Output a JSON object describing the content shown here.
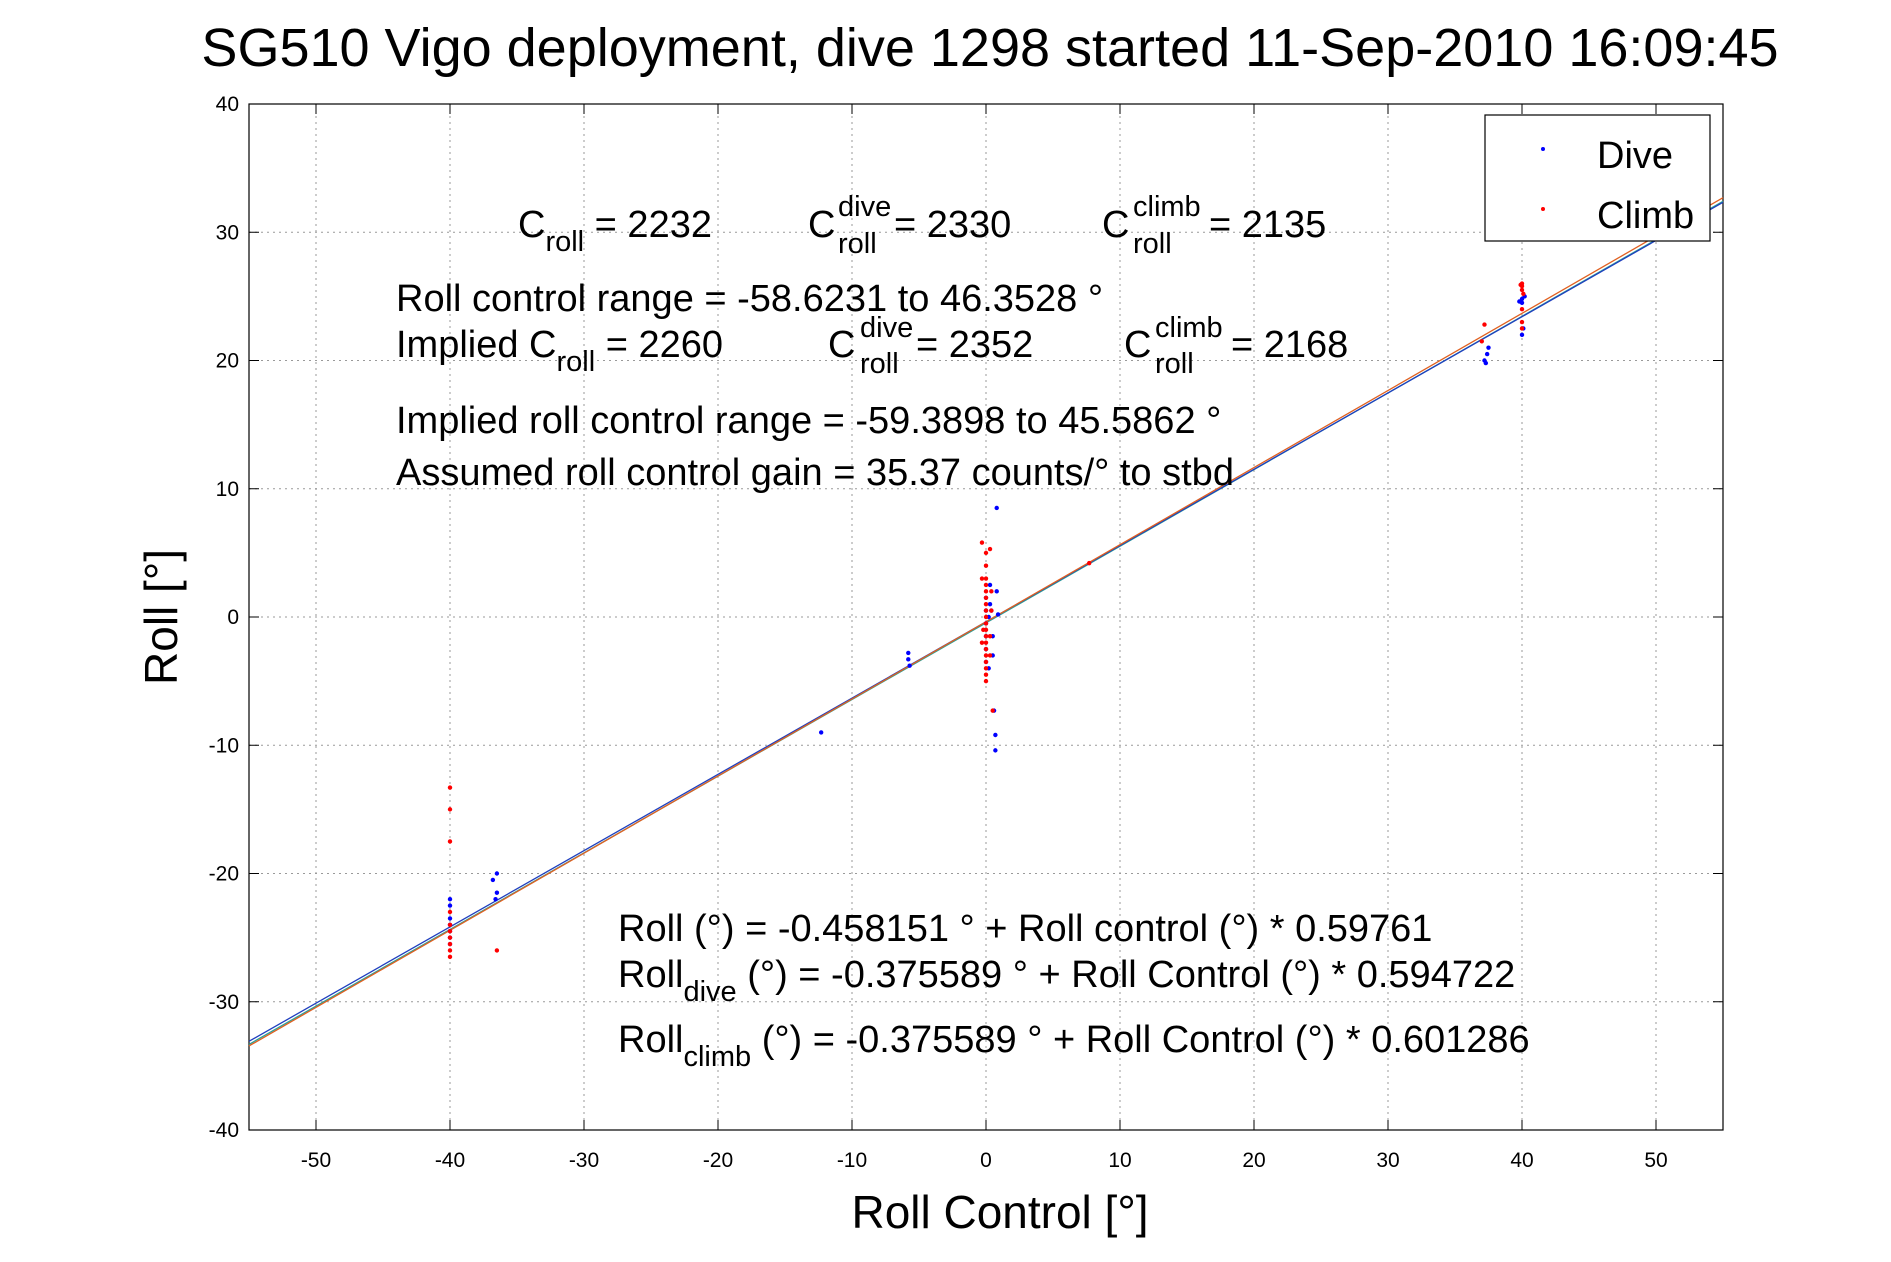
{
  "chart_data": {
    "type": "scatter",
    "title": "SG510 Vigo deployment, dive 1298 started 11-Sep-2010 16:09:45",
    "xlabel": "Roll Control [°]",
    "ylabel": "Roll [°]",
    "xlim": [
      -55,
      55
    ],
    "ylim": [
      -40,
      40
    ],
    "xticks": [
      -50,
      -40,
      -30,
      -20,
      -10,
      0,
      10,
      20,
      30,
      40,
      50
    ],
    "yticks": [
      -40,
      -30,
      -20,
      -10,
      0,
      10,
      20,
      30,
      40
    ],
    "grid": true,
    "legend": {
      "position": "top-right",
      "entries": [
        "Dive",
        "Climb"
      ]
    },
    "colors": {
      "dive": "#0000ff",
      "climb": "#ff0000"
    },
    "series": [
      {
        "name": "Dive",
        "color": "#0000ff",
        "points": [
          [
            -40,
            -22
          ],
          [
            -40,
            -22.5
          ],
          [
            -40,
            -23.5
          ],
          [
            -40,
            -24
          ],
          [
            -40,
            -24.5
          ],
          [
            -40,
            -25
          ],
          [
            -40,
            -25.5
          ],
          [
            -36.5,
            -20
          ],
          [
            -36.8,
            -20.5
          ],
          [
            -36.5,
            -21.5
          ],
          [
            -36.6,
            -22
          ],
          [
            -12.3,
            -9
          ],
          [
            -5.8,
            -2.8
          ],
          [
            -5.8,
            -3.3
          ],
          [
            -5.7,
            -3.8
          ],
          [
            0,
            -3.5
          ],
          [
            0,
            -2.5
          ],
          [
            0,
            -1.5
          ],
          [
            0,
            -0.5
          ],
          [
            0,
            0.5
          ],
          [
            0,
            1.5
          ],
          [
            0.2,
            -4
          ],
          [
            0.2,
            0
          ],
          [
            0.3,
            1
          ],
          [
            0.3,
            2.5
          ],
          [
            0.5,
            -3
          ],
          [
            0.5,
            -1.5
          ],
          [
            0.4,
            0.5
          ],
          [
            0.8,
            8.5
          ],
          [
            0.7,
            -9.2
          ],
          [
            0.7,
            -10.4
          ],
          [
            0.6,
            -7.3
          ],
          [
            0.8,
            2
          ],
          [
            0.9,
            0.2
          ],
          [
            37.2,
            20
          ],
          [
            37.4,
            20.5
          ],
          [
            37.5,
            21
          ],
          [
            37.3,
            19.8
          ],
          [
            40,
            22
          ],
          [
            40,
            24.5
          ],
          [
            40,
            24.8
          ],
          [
            40.2,
            25
          ],
          [
            39.8,
            24.6
          ],
          [
            40.1,
            22.5
          ]
        ]
      },
      {
        "name": "Climb",
        "color": "#ff0000",
        "points": [
          [
            -40,
            -13.3
          ],
          [
            -40,
            -15
          ],
          [
            -40,
            -17.5
          ],
          [
            -40,
            -24.5
          ],
          [
            -40,
            -25
          ],
          [
            -40,
            -25.5
          ],
          [
            -40,
            -26
          ],
          [
            -40,
            -26.5
          ],
          [
            -40,
            -24
          ],
          [
            -40,
            -23
          ],
          [
            -36.5,
            -26
          ],
          [
            -0.3,
            5.8
          ],
          [
            0,
            5
          ],
          [
            0,
            4
          ],
          [
            0,
            3
          ],
          [
            0,
            2.5
          ],
          [
            0,
            2
          ],
          [
            0,
            1.5
          ],
          [
            0,
            1
          ],
          [
            0,
            0.5
          ],
          [
            0,
            0
          ],
          [
            0,
            -0.5
          ],
          [
            0,
            -1
          ],
          [
            0,
            -1.5
          ],
          [
            0,
            -2
          ],
          [
            0,
            -2.5
          ],
          [
            0,
            -3
          ],
          [
            0,
            -3.5
          ],
          [
            0,
            -4
          ],
          [
            0,
            -4.5
          ],
          [
            0,
            -5
          ],
          [
            -0.3,
            3
          ],
          [
            -0.3,
            -2
          ],
          [
            -0.2,
            -1
          ],
          [
            0.3,
            5.3
          ],
          [
            0.4,
            2
          ],
          [
            0.3,
            -1.5
          ],
          [
            0.4,
            0.5
          ],
          [
            0.3,
            -3
          ],
          [
            0.5,
            -7.3
          ],
          [
            7.7,
            4.2
          ],
          [
            37,
            21.5
          ],
          [
            37.2,
            22.8
          ],
          [
            40,
            26
          ],
          [
            40,
            25.8
          ],
          [
            40,
            25.5
          ],
          [
            40.1,
            25.2
          ],
          [
            40,
            24
          ],
          [
            40,
            23
          ],
          [
            40,
            22.5
          ],
          [
            39.9,
            25.9
          ]
        ]
      }
    ],
    "fit_lines": [
      {
        "name": "fit-all",
        "intercept": -0.458151,
        "slope": 0.59761,
        "color": "#2aa198"
      },
      {
        "name": "fit-dive",
        "intercept": -0.375589,
        "slope": 0.594722,
        "color": "#1f3fbf"
      },
      {
        "name": "fit-climb",
        "intercept": -0.375589,
        "slope": 0.601286,
        "color": "#e06020"
      }
    ]
  },
  "annotations": {
    "c_roll_label": "C",
    "c_roll_sub": "roll",
    "c_roll_val": " = 2232",
    "c_dive_label": "C",
    "c_dive_sup": "dive",
    "c_dive_sub": "roll",
    "c_dive_val": " = 2330",
    "c_climb_label": "C",
    "c_climb_sup": "climb",
    "c_climb_sub": "roll",
    "c_climb_val": " = 2135",
    "range_line": "Roll control range = -58.6231 to 46.3528 °",
    "implied_prefix": "Implied C",
    "implied_c_sub": "roll",
    "implied_c_val": " = 2260",
    "implied_dive_label": "C",
    "implied_dive_sup": "dive",
    "implied_dive_sub": "roll",
    "implied_dive_val": " = 2352",
    "implied_climb_label": "C",
    "implied_climb_sup": "climb",
    "implied_climb_sub": "roll",
    "implied_climb_val": " = 2168",
    "implied_range_line": "Implied roll control range = -59.3898 to 45.5862 °",
    "gain_line": "Assumed roll control gain = 35.37 counts/° to stbd",
    "eq_all": "Roll (°) = -0.458151 ° + Roll control (°) * 0.59761",
    "eq_dive_pre": "Roll",
    "eq_dive_sub": "dive",
    "eq_dive_post": " (°) = -0.375589 ° + Roll Control (°) * 0.594722",
    "eq_climb_pre": "Roll",
    "eq_climb_sub": "climb",
    "eq_climb_post": " (°) = -0.375589 ° + Roll Control (°) * 0.601286"
  }
}
